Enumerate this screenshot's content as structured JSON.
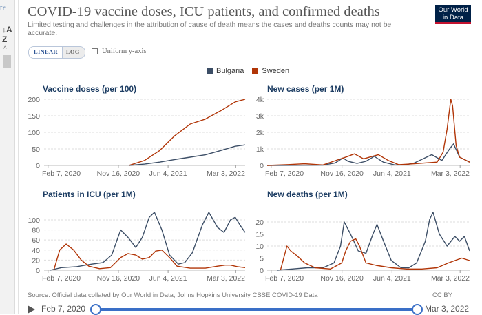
{
  "left_panel": {
    "glyph_top": "tr",
    "sort_icon_label": "↓A Z",
    "chevron": "^"
  },
  "header": {
    "title": "COVID-19 vaccine doses, ICU patients, and confirmed deaths",
    "subtitle": "Limited testing and challenges in the attribution of cause of death means the cases and deaths counts may not be accurate.",
    "logo": "Our World in Data"
  },
  "controls": {
    "linear": "LINEAR",
    "log": "LOG",
    "uniform_label": "Uniform y-axis"
  },
  "legend": [
    {
      "name": "Bulgaria",
      "color": "#3c4e66"
    },
    {
      "name": "Sweden",
      "color": "#b13507"
    }
  ],
  "colors": {
    "bulgaria": "#3c4e66",
    "sweden": "#b13507",
    "grid": "#dddddd",
    "slider": "#3a6fc7"
  },
  "chart_data": [
    {
      "type": "line",
      "title": "Vaccine doses (per 100)",
      "x_range": [
        "2020-01-22",
        "2022-04-10"
      ],
      "ylim": [
        0,
        200
      ],
      "yticks": [
        0,
        50,
        100,
        150,
        200
      ],
      "ytick_labels": [
        "0",
        "50",
        "100",
        "150",
        "200"
      ],
      "xticks": [
        "2020-02-07",
        "2020-11-16",
        "2021-06-04",
        "2022-03-03"
      ],
      "xtick_labels": [
        "Feb 7, 2020",
        "Nov 16, 2020",
        "Jun 4, 2021",
        "Mar 3, 2022"
      ],
      "series": [
        {
          "name": "Bulgaria",
          "x": [
            "2020-12-28",
            "2021-03-01",
            "2021-05-01",
            "2021-07-01",
            "2021-09-01",
            "2021-11-01",
            "2022-01-01",
            "2022-03-01",
            "2022-04-10"
          ],
          "y": [
            0,
            4,
            10,
            18,
            25,
            32,
            45,
            58,
            62
          ]
        },
        {
          "name": "Sweden",
          "x": [
            "2020-12-28",
            "2021-03-01",
            "2021-05-01",
            "2021-07-01",
            "2021-09-01",
            "2021-11-01",
            "2022-01-01",
            "2022-03-01",
            "2022-04-10"
          ],
          "y": [
            0,
            15,
            45,
            90,
            125,
            140,
            165,
            192,
            200
          ]
        }
      ]
    },
    {
      "type": "line",
      "title": "New cases (per 1M)",
      "x_range": [
        "2020-01-22",
        "2022-04-10"
      ],
      "ylim": [
        0,
        4000
      ],
      "yticks": [
        0,
        1000,
        2000,
        3000,
        4000
      ],
      "ytick_labels": [
        "0",
        "1k",
        "2k",
        "3k",
        "4k"
      ],
      "xticks": [
        "2020-02-07",
        "2020-11-16",
        "2021-06-04",
        "2022-03-03"
      ],
      "xtick_labels": [
        "Feb 7, 2020",
        "Nov 16, 2020",
        "Jun 4, 2021",
        "Mar 3, 2022"
      ],
      "series": [
        {
          "name": "Bulgaria",
          "x": [
            "2020-01-22",
            "2020-09-01",
            "2020-10-20",
            "2020-11-20",
            "2020-12-10",
            "2021-01-15",
            "2021-02-20",
            "2021-03-25",
            "2021-04-30",
            "2021-06-15",
            "2021-08-01",
            "2021-09-01",
            "2021-10-20",
            "2021-11-10",
            "2021-12-20",
            "2022-01-20",
            "2022-02-05",
            "2022-03-01",
            "2022-04-10"
          ],
          "y": [
            0,
            20,
            150,
            450,
            250,
            120,
            250,
            550,
            200,
            30,
            50,
            150,
            500,
            650,
            300,
            1000,
            1300,
            500,
            200
          ]
        },
        {
          "name": "Sweden",
          "x": [
            "2020-01-22",
            "2020-04-15",
            "2020-06-20",
            "2020-09-01",
            "2020-11-01",
            "2020-12-10",
            "2021-01-05",
            "2021-02-10",
            "2021-04-10",
            "2021-05-20",
            "2021-07-01",
            "2021-09-01",
            "2021-12-01",
            "2021-12-25",
            "2022-01-10",
            "2022-01-25",
            "2022-02-01",
            "2022-02-15",
            "2022-03-01",
            "2022-04-10"
          ],
          "y": [
            0,
            50,
            100,
            30,
            350,
            550,
            700,
            400,
            650,
            300,
            40,
            100,
            200,
            800,
            2200,
            4000,
            3600,
            1200,
            500,
            200
          ]
        }
      ]
    },
    {
      "type": "line",
      "title": "Patients in ICU (per 1M)",
      "x_range": [
        "2020-01-22",
        "2022-04-10"
      ],
      "ylim": [
        0,
        115
      ],
      "yticks": [
        0,
        20,
        40,
        60,
        80,
        100
      ],
      "ytick_labels": [
        "0",
        "20",
        "40",
        "60",
        "80",
        "100"
      ],
      "xticks": [
        "2020-02-07",
        "2020-11-16",
        "2021-06-04",
        "2022-03-03"
      ],
      "xtick_labels": [
        "Feb 7, 2020",
        "Nov 16, 2020",
        "Jun 4, 2021",
        "Mar 3, 2022"
      ],
      "series": [
        {
          "name": "Bulgaria",
          "x": [
            "2020-02-15",
            "2020-04-01",
            "2020-06-01",
            "2020-08-01",
            "2020-09-15",
            "2020-10-20",
            "2020-11-25",
            "2020-12-25",
            "2021-01-25",
            "2021-02-20",
            "2021-03-20",
            "2021-04-10",
            "2021-05-10",
            "2021-06-10",
            "2021-07-15",
            "2021-08-10",
            "2021-09-10",
            "2021-10-20",
            "2021-11-15",
            "2021-12-20",
            "2022-01-15",
            "2022-02-10",
            "2022-03-01",
            "2022-03-20",
            "2022-04-10"
          ],
          "y": [
            0,
            5,
            7,
            12,
            15,
            30,
            80,
            65,
            45,
            65,
            105,
            115,
            80,
            30,
            12,
            15,
            35,
            90,
            115,
            85,
            75,
            100,
            105,
            90,
            75
          ]
        },
        {
          "name": "Sweden",
          "x": [
            "2020-03-01",
            "2020-03-25",
            "2020-04-20",
            "2020-05-20",
            "2020-06-20",
            "2020-07-20",
            "2020-09-01",
            "2020-10-15",
            "2020-11-25",
            "2020-12-25",
            "2021-01-25",
            "2021-02-20",
            "2021-03-20",
            "2021-04-15",
            "2021-05-10",
            "2021-06-10",
            "2021-07-10",
            "2021-09-01",
            "2021-11-01",
            "2021-12-20",
            "2022-01-20",
            "2022-02-10",
            "2022-03-10",
            "2022-04-10"
          ],
          "y": [
            0,
            40,
            52,
            40,
            20,
            8,
            3,
            5,
            25,
            33,
            30,
            22,
            25,
            38,
            40,
            25,
            8,
            4,
            4,
            8,
            10,
            10,
            7,
            5
          ]
        }
      ]
    },
    {
      "type": "line",
      "title": "New deaths (per 1M)",
      "x_range": [
        "2020-01-22",
        "2022-04-10"
      ],
      "ylim": [
        0,
        24
      ],
      "yticks": [
        0,
        5,
        10,
        15,
        20
      ],
      "ytick_labels": [
        "0",
        "5",
        "10",
        "15",
        "20"
      ],
      "xticks": [
        "2020-02-07",
        "2020-11-16",
        "2021-06-04",
        "2022-03-03"
      ],
      "xtick_labels": [
        "Feb 7, 2020",
        "Nov 16, 2020",
        "Jun 4, 2021",
        "Mar 3, 2022"
      ],
      "series": [
        {
          "name": "Bulgaria",
          "x": [
            "2020-03-01",
            "2020-05-01",
            "2020-07-01",
            "2020-09-01",
            "2020-10-15",
            "2020-11-10",
            "2020-11-25",
            "2020-12-20",
            "2021-01-20",
            "2021-02-20",
            "2021-03-20",
            "2021-04-05",
            "2021-05-01",
            "2021-06-01",
            "2021-07-10",
            "2021-08-10",
            "2021-09-10",
            "2021-10-15",
            "2021-11-01",
            "2021-11-15",
            "2021-12-10",
            "2022-01-10",
            "2022-02-10",
            "2022-03-01",
            "2022-03-20",
            "2022-04-10"
          ],
          "y": [
            0,
            0.5,
            1,
            1,
            3,
            10,
            20,
            15,
            8,
            7,
            15,
            19,
            12,
            4,
            1,
            1,
            3,
            12,
            21,
            24,
            15,
            10,
            14,
            12,
            14,
            8
          ]
        },
        {
          "name": "Sweden",
          "x": [
            "2020-03-15",
            "2020-04-10",
            "2020-04-25",
            "2020-05-20",
            "2020-06-20",
            "2020-08-01",
            "2020-10-01",
            "2020-11-15",
            "2020-12-01",
            "2020-12-20",
            "2021-01-10",
            "2021-01-25",
            "2021-02-20",
            "2021-04-01",
            "2021-06-01",
            "2021-08-01",
            "2021-10-01",
            "2021-12-01",
            "2022-01-15",
            "2022-02-10",
            "2022-03-10",
            "2022-04-10"
          ],
          "y": [
            0,
            10,
            8,
            6,
            3,
            1,
            0.5,
            3,
            8,
            12,
            13,
            10,
            3,
            2,
            1,
            0.5,
            0.5,
            1,
            3,
            4,
            5,
            4
          ]
        }
      ]
    }
  ],
  "footer": {
    "source": "Source: Official data collated by Our World in Data, Johns Hopkins University CSSE COVID-19 Data",
    "license": "CC BY",
    "timeline_start": "Feb 7, 2020",
    "timeline_end": "Mar 3, 2022"
  }
}
